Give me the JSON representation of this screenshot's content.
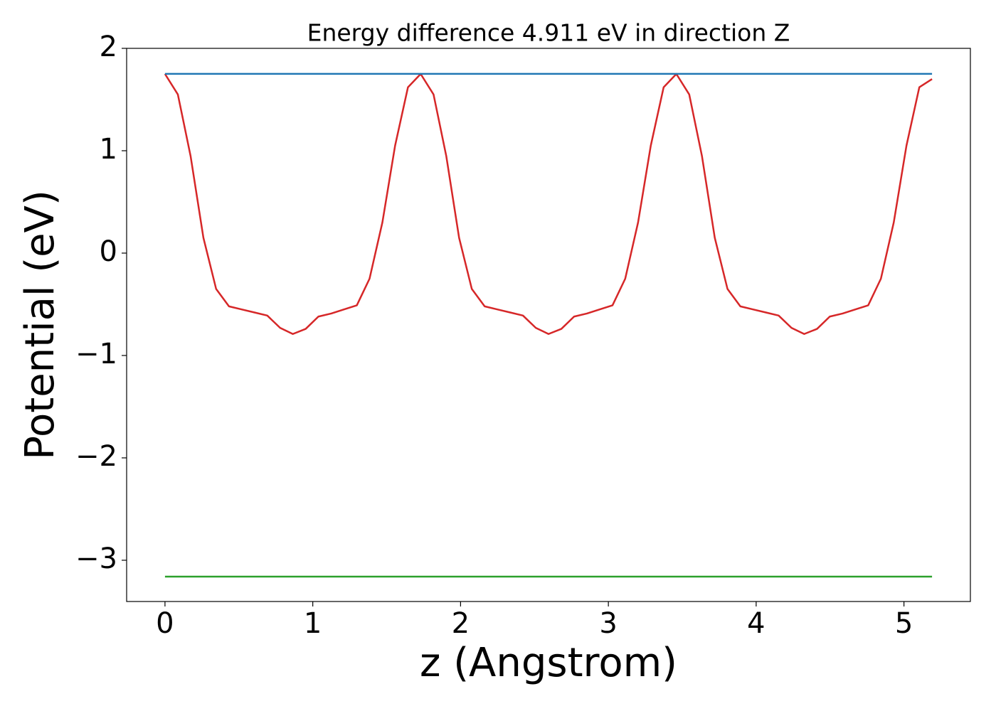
{
  "chart_data": {
    "type": "line",
    "title": "Energy difference 4.911 eV in direction Z",
    "xlabel": "z (Angstrom)",
    "ylabel": "Potential (eV)",
    "xlim": [
      -0.2595,
      5.4495
    ],
    "ylim": [
      -3.403,
      2.0
    ],
    "xticks": [
      0,
      1,
      2,
      3,
      4,
      5
    ],
    "yticks": [
      {
        "value": -3,
        "label": "−3"
      },
      {
        "value": -2,
        "label": "−2"
      },
      {
        "value": -1,
        "label": "−1"
      },
      0,
      1,
      2
    ],
    "grid": false,
    "series": [
      {
        "color": "#d62728",
        "x": [
          0,
          0.087,
          0.173,
          0.26,
          0.346,
          0.433,
          0.519,
          0.606,
          0.692,
          0.779,
          0.865,
          0.952,
          1.038,
          1.125,
          1.211,
          1.298,
          1.384,
          1.471,
          1.557,
          1.644,
          1.73,
          1.817,
          1.903,
          1.99,
          2.076,
          2.163,
          2.249,
          2.336,
          2.422,
          2.509,
          2.595,
          2.682,
          2.768,
          2.855,
          2.941,
          3.028,
          3.114,
          3.201,
          3.287,
          3.374,
          3.46,
          3.547,
          3.633,
          3.72,
          3.806,
          3.893,
          3.979,
          4.066,
          4.152,
          4.239,
          4.325,
          4.412,
          4.498,
          4.585,
          4.671,
          4.758,
          4.844,
          4.931,
          5.017,
          5.104,
          5.19
        ],
        "values": [
          1.75,
          1.55,
          0.95,
          0.15,
          -0.35,
          -0.52,
          -0.55,
          -0.58,
          -0.61,
          -0.73,
          -0.79,
          -0.74,
          -0.62,
          -0.59,
          -0.55,
          -0.51,
          -0.25,
          0.3,
          1.05,
          1.62,
          1.75,
          1.55,
          0.95,
          0.15,
          -0.35,
          -0.52,
          -0.55,
          -0.58,
          -0.61,
          -0.73,
          -0.79,
          -0.74,
          -0.62,
          -0.59,
          -0.55,
          -0.51,
          -0.25,
          0.3,
          1.05,
          1.62,
          1.75,
          1.55,
          0.95,
          0.15,
          -0.35,
          -0.52,
          -0.55,
          -0.58,
          -0.61,
          -0.73,
          -0.79,
          -0.74,
          -0.62,
          -0.59,
          -0.55,
          -0.51,
          -0.25,
          0.3,
          1.05,
          1.62,
          1.7
        ]
      },
      {
        "color": "#1f77b4",
        "x": [
          0,
          5.19
        ],
        "values": [
          1.751,
          1.751
        ]
      },
      {
        "color": "#2ca02c",
        "x": [
          0,
          5.19
        ],
        "values": [
          -3.16,
          -3.16
        ]
      }
    ]
  }
}
